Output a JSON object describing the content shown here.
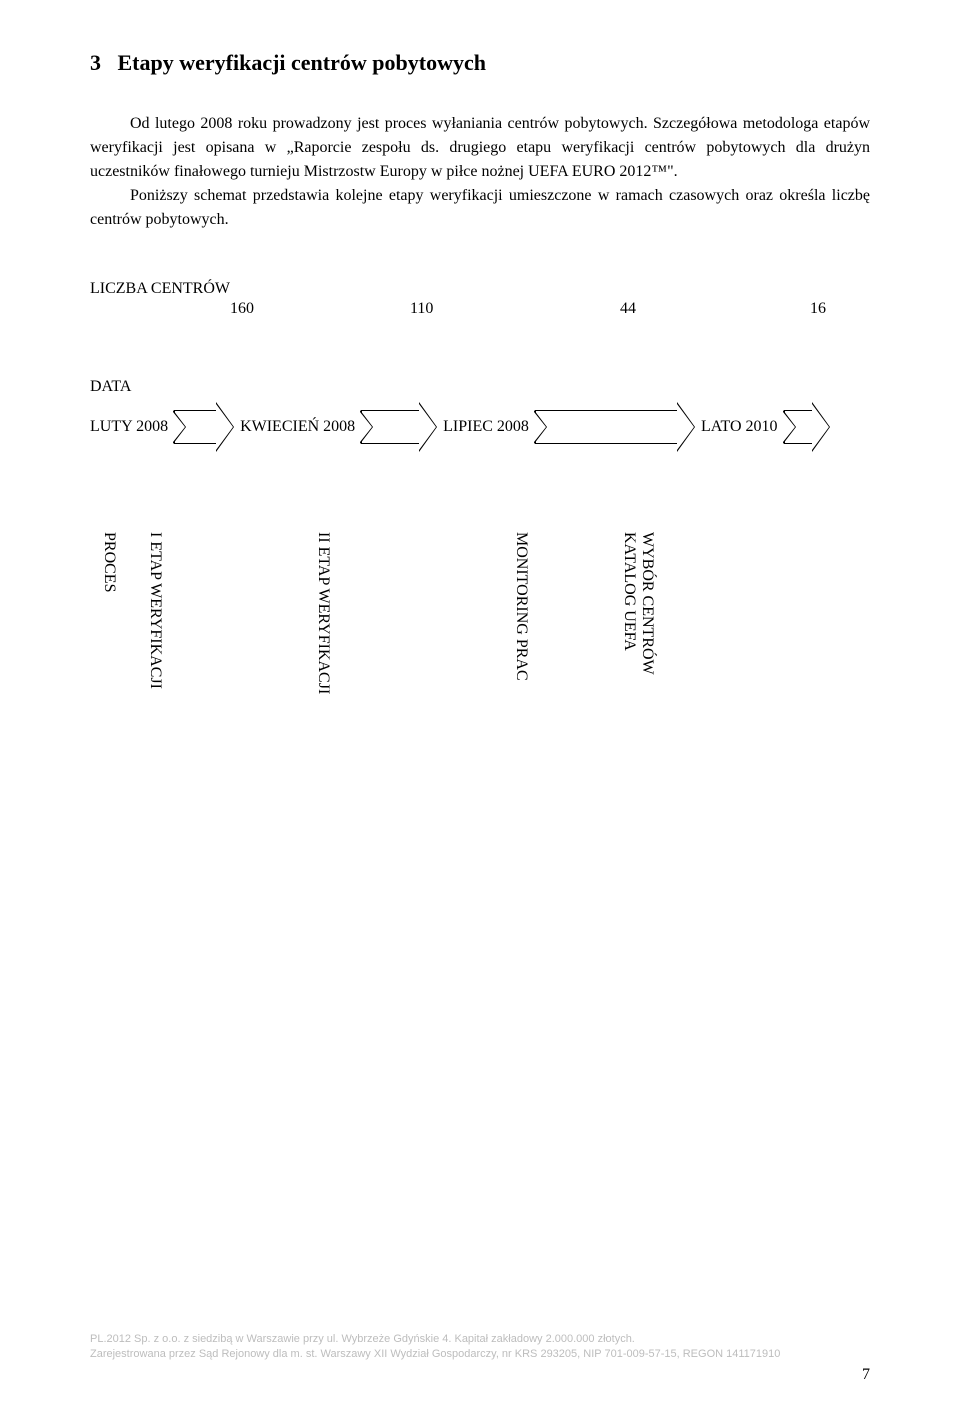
{
  "section": {
    "number": "3",
    "title": "Etapy weryfikacji centrów pobytowych"
  },
  "paragraph1": "Od lutego 2008 roku prowadzony jest proces wyłaniania centrów pobytowych. Szczegółowa metodologa etapów weryfikacji jest opisana w „Raporcie zespołu ds. drugiego etapu weryfikacji centrów pobytowych dla drużyn uczestników finałowego turnieju Mistrzostw Europy w piłce nożnej UEFA EURO 2012™\".",
  "paragraph2": "Poniższy schemat przedstawia kolejne etapy weryfikacji umieszczone w ramach czasowych oraz określa liczbę centrów pobytowych.",
  "counts": {
    "label": "LICZBA CENTRÓW",
    "values": [
      "160",
      "110",
      "44",
      "16"
    ]
  },
  "timeline": {
    "data_label": "DATA",
    "items": [
      "LUTY 2008",
      "KWIECIEŃ 2008",
      "LIPIEC 2008",
      "LATO 2010"
    ]
  },
  "process": {
    "label": "PROCES",
    "steps": [
      "I ETAP WERYFIKACJI",
      "II ETAP WERYFIKACJI",
      "MONITORING PRAC",
      "WYBÓR CENTRÓW KATALOG UEFA"
    ],
    "step4_line1": "WYBÓR CENTRÓW",
    "step4_line2": "KATALOG UEFA"
  },
  "footer": {
    "line1": "PL.2012 Sp. z o.o. z siedzibą w Warszawie przy ul. Wybrzeże Gdyńskie 4. Kapitał zakładowy 2.000.000 złotych.",
    "line2": "Zarejestrowana przez Sąd Rejonowy dla m. st. Warszawy XII Wydział Gospodarczy, nr KRS 293205, NIP 701-009-57-15, REGON 141171910"
  },
  "page_number": "7"
}
